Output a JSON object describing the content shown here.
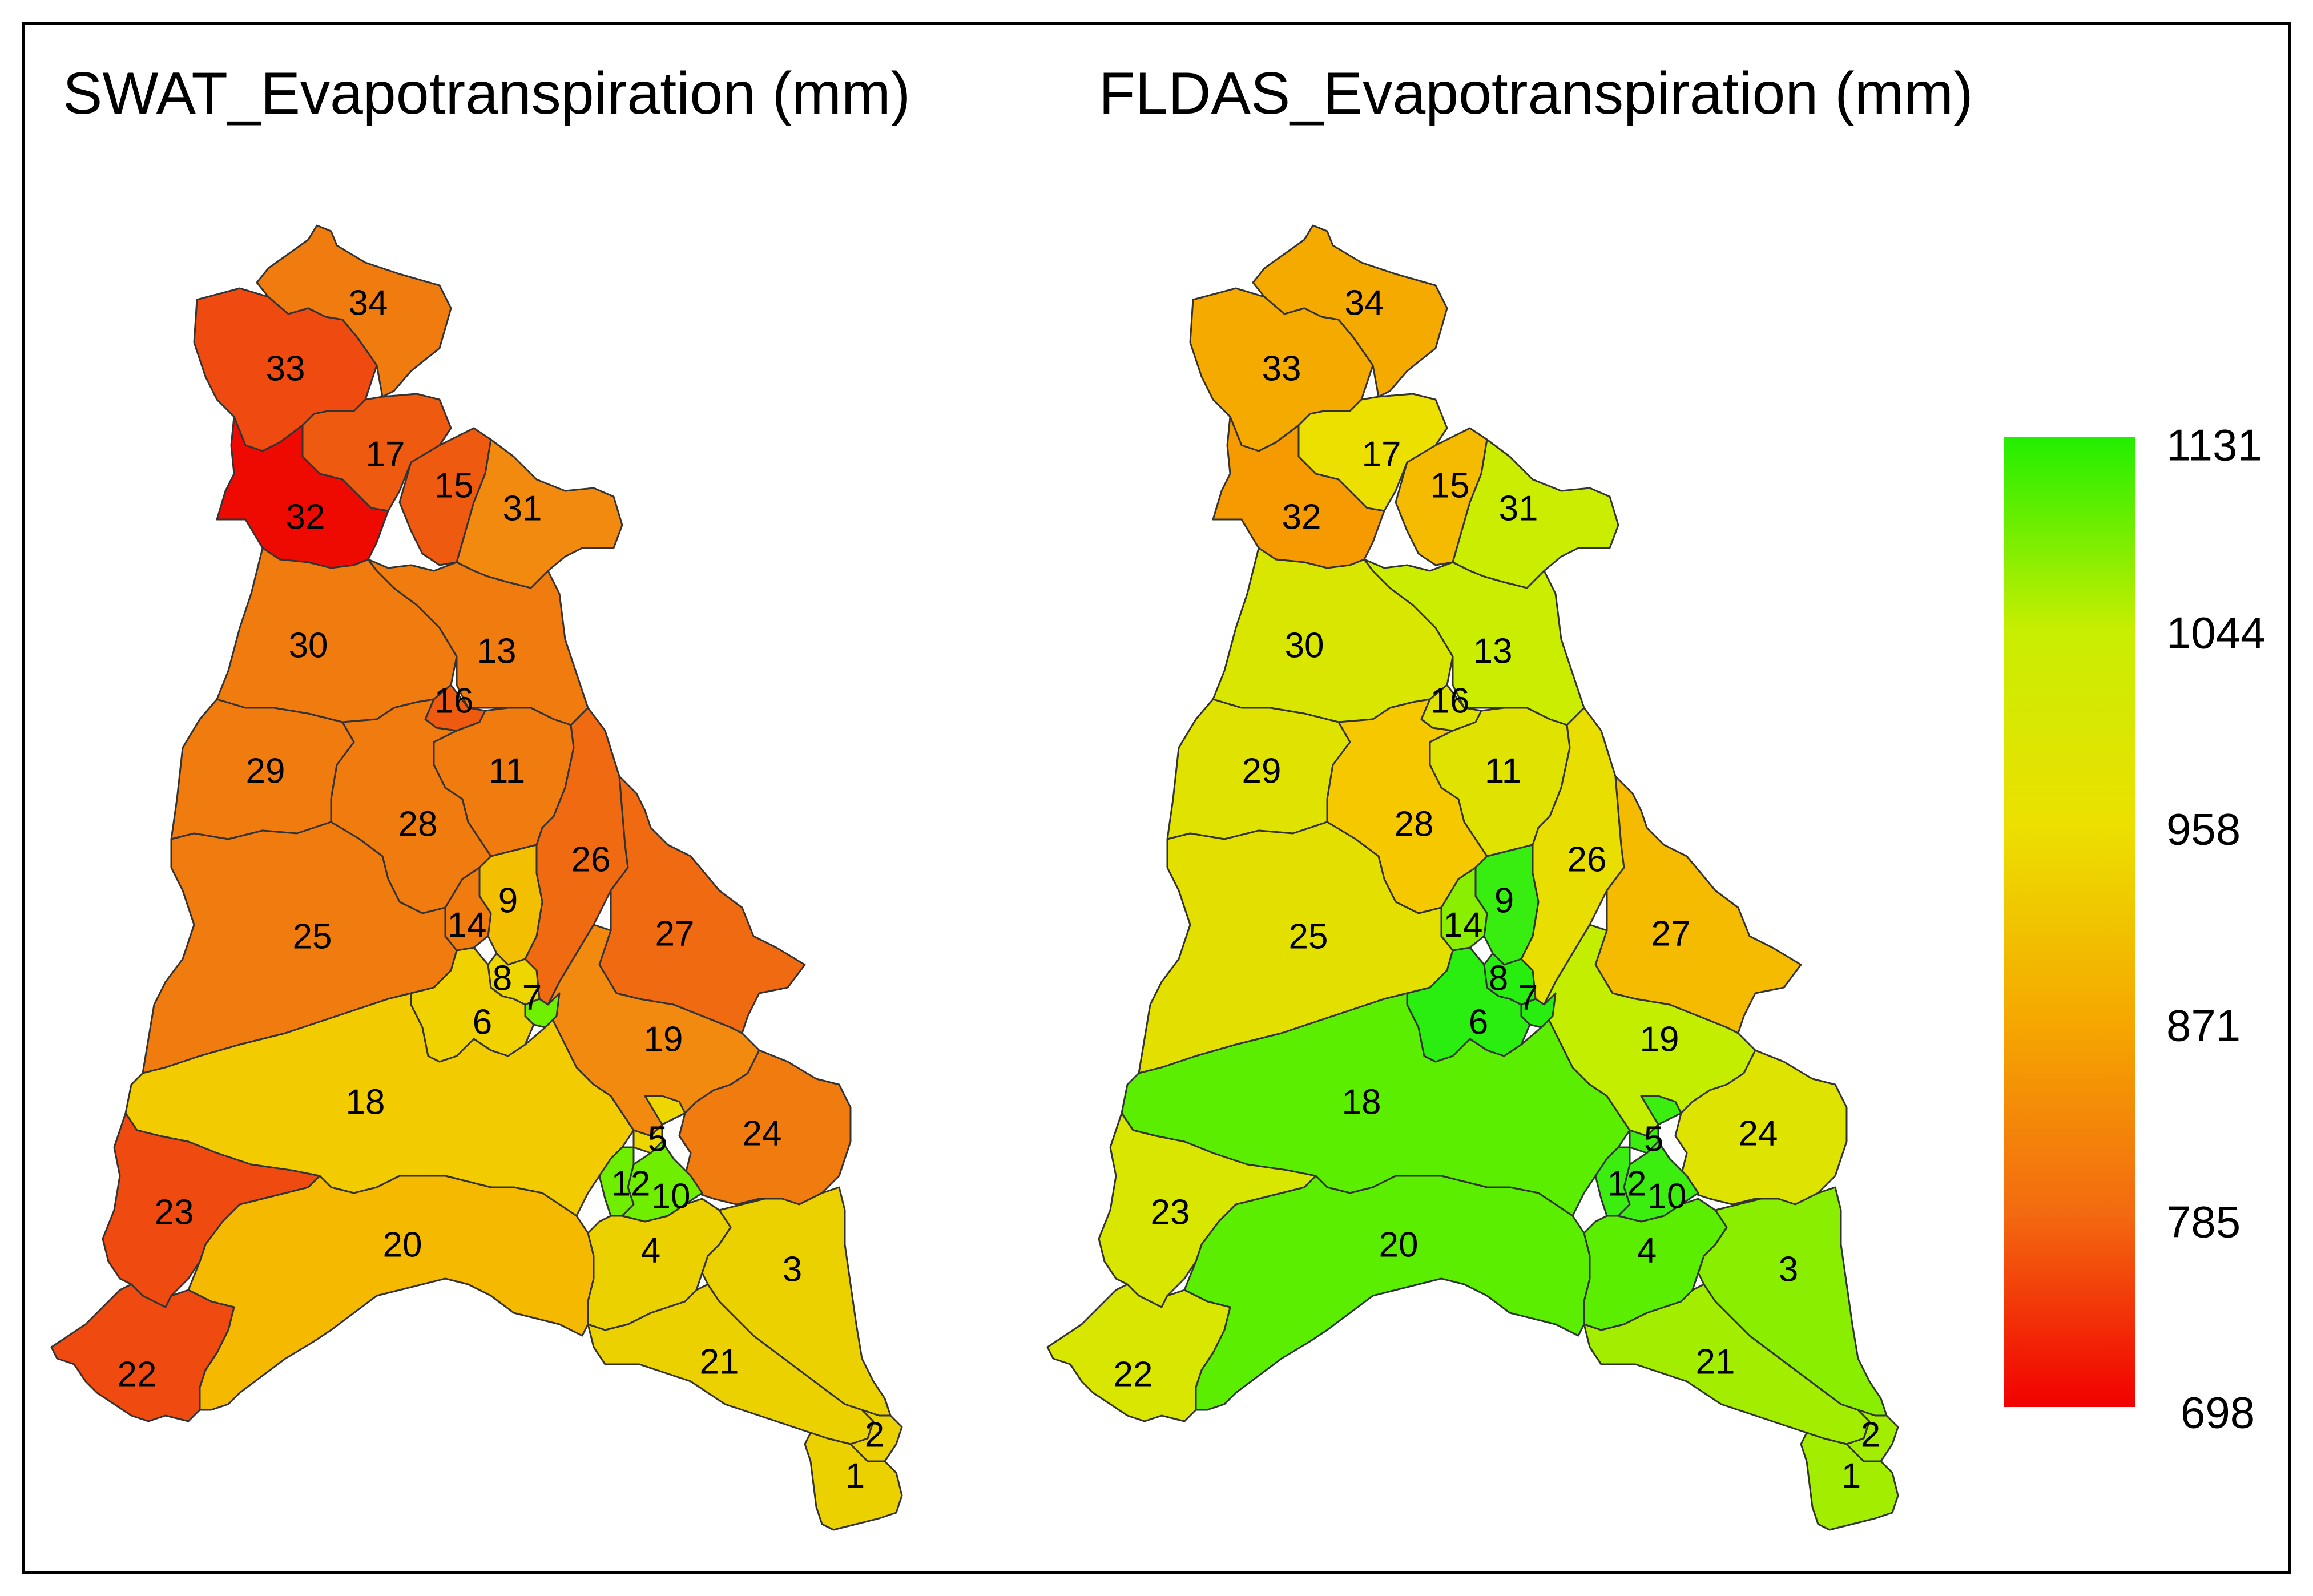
{
  "titles": {
    "left": "SWAT_Evapotranspiration (mm)",
    "right": "FLDAS_Evapotranspiration (mm)"
  },
  "legend": {
    "ticks": [
      "1131",
      "1044",
      "958",
      "871",
      "785",
      "698"
    ],
    "colors": [
      "#22ee00",
      "#c8ee00",
      "#ece000",
      "#f5a800",
      "#f36a10",
      "#f20000"
    ]
  },
  "subbasins": [
    {
      "id": "1",
      "swat_color": "#ebd100",
      "fldas_color": "#a3ee00"
    },
    {
      "id": "2",
      "swat_color": "#ebd100",
      "fldas_color": "#a3ee00"
    },
    {
      "id": "3",
      "swat_color": "#ebd100",
      "fldas_color": "#8aee00"
    },
    {
      "id": "4",
      "swat_color": "#ebd100",
      "fldas_color": "#5cee00"
    },
    {
      "id": "5",
      "swat_color": "#eed600",
      "fldas_color": "#3bee10"
    },
    {
      "id": "6",
      "swat_color": "#f0d200",
      "fldas_color": "#2aee10"
    },
    {
      "id": "7",
      "swat_color": "#6ef000",
      "fldas_color": "#28ee10"
    },
    {
      "id": "8",
      "swat_color": "#eed600",
      "fldas_color": "#28ee10"
    },
    {
      "id": "9",
      "swat_color": "#f2c000",
      "fldas_color": "#38ee10"
    },
    {
      "id": "10",
      "swat_color": "#70ee00",
      "fldas_color": "#3bee10"
    },
    {
      "id": "11",
      "swat_color": "#f07c10",
      "fldas_color": "#e0e300"
    },
    {
      "id": "12",
      "swat_color": "#70ee00",
      "fldas_color": "#3bee10"
    },
    {
      "id": "13",
      "swat_color": "#f07c10",
      "fldas_color": "#cbee00"
    },
    {
      "id": "14",
      "swat_color": "#f07c10",
      "fldas_color": "#8aee00"
    },
    {
      "id": "15",
      "swat_color": "#ee5a10",
      "fldas_color": "#f5bb00"
    },
    {
      "id": "16",
      "swat_color": "#ee5a10",
      "fldas_color": "#dfe300"
    },
    {
      "id": "17",
      "swat_color": "#ee5a10",
      "fldas_color": "#ece000"
    },
    {
      "id": "18",
      "swat_color": "#f2cc00",
      "fldas_color": "#5bee00"
    },
    {
      "id": "19",
      "swat_color": "#f38a10",
      "fldas_color": "#c3ee00"
    },
    {
      "id": "20",
      "swat_color": "#f5ba00",
      "fldas_color": "#5bee00"
    },
    {
      "id": "21",
      "swat_color": "#ebd100",
      "fldas_color": "#a3ee00"
    },
    {
      "id": "22",
      "swat_color": "#ef4a10",
      "fldas_color": "#d9e600"
    },
    {
      "id": "23",
      "swat_color": "#ef4a10",
      "fldas_color": "#d9e600"
    },
    {
      "id": "24",
      "swat_color": "#f07c10",
      "fldas_color": "#dfe300"
    },
    {
      "id": "25",
      "swat_color": "#f07c10",
      "fldas_color": "#e3e000"
    },
    {
      "id": "26",
      "swat_color": "#ef6a10",
      "fldas_color": "#e8de00"
    },
    {
      "id": "27",
      "swat_color": "#ef6a10",
      "fldas_color": "#f5bb00"
    },
    {
      "id": "28",
      "swat_color": "#f07c10",
      "fldas_color": "#f5c800"
    },
    {
      "id": "29",
      "swat_color": "#f07c10",
      "fldas_color": "#e0e300"
    },
    {
      "id": "30",
      "swat_color": "#f07c10",
      "fldas_color": "#d9e600"
    },
    {
      "id": "31",
      "swat_color": "#f38a10",
      "fldas_color": "#cbee00"
    },
    {
      "id": "32",
      "swat_color": "#ee0a00",
      "fldas_color": "#f59a00"
    },
    {
      "id": "33",
      "swat_color": "#ef4a10",
      "fldas_color": "#f5aa00"
    },
    {
      "id": "34",
      "swat_color": "#f07c10",
      "fldas_color": "#f5aa00"
    }
  ]
}
